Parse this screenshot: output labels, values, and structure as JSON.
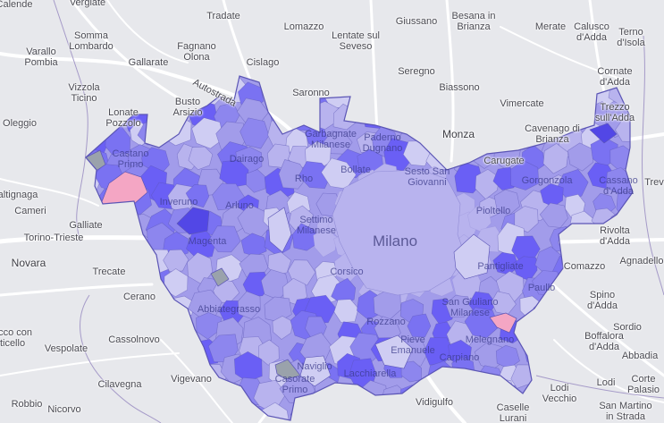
{
  "map": {
    "colors": {
      "background": "#e7e8ec",
      "road": "#ffffff",
      "border": "#a59ac8",
      "cell_outline": "#5b55b5",
      "palette": [
        "#cfcdf3",
        "#b8b3ee",
        "#a29cea",
        "#8d86ee",
        "#7a72f2",
        "#6a5ff5"
      ],
      "dark_cell": "#5247e6",
      "pink": "#f4a6c4",
      "gray": "#9aa2ab"
    },
    "highlight_cells": [
      {
        "name": "pink-cell-castano",
        "color": "#f4a6c4"
      },
      {
        "name": "pink-cell-melegnano",
        "color": "#f4a6c4"
      },
      {
        "name": "gray-cell-castano",
        "color": "#9aa2ab"
      },
      {
        "name": "gray-cell-abbiategrasso",
        "color": "#9aa2ab"
      },
      {
        "name": "gray-cell-casorate",
        "color": "#9aa2ab"
      }
    ],
    "labels": {
      "calende": "Calende",
      "vergiate": "Vergiate",
      "tradate": "Tradate",
      "lomazzo": "Lomazzo",
      "giussano": "Giussano",
      "besana": "Besana in\nBrianza",
      "merate": "Merate",
      "calusco": "Calusco\nd'Adda",
      "terno": "Terno\nd'Isola",
      "somma": "Somma\nLombardo",
      "fagnano": "Fagnano\nOlona",
      "lentate": "Lentate sul\nSeveso",
      "varallo": "Varallo\nPombia",
      "gallarate": "Gallarate",
      "cislago": "Cislago",
      "seregno": "Seregno",
      "cornate": "Cornate\nd'Adda",
      "vizzola": "Vizzola\nTicino",
      "busto": "Busto\nArsizio",
      "saronno": "Saronno",
      "biassono": "Biassono",
      "trezzo": "Trezzo\nsull'Adda",
      "oleggio": "Oleggio",
      "lonate": "Lonate\nPozzolo",
      "vimercate": "Vimercate",
      "monza": "Monza",
      "cavenago": "Cavenago di\nBrianza",
      "castano": "Castano\nPrimo",
      "garbagnate": "Garbagnate\nMilanese",
      "paderno": "Paderno\nDugnano",
      "carugate": "Carugate",
      "dairago": "Dairago",
      "bollate": "Bollate",
      "sesto": "Sesto San\nGiovanni",
      "gorgonzola": "Gorgonzola",
      "cassano": "Cassano\nd'Adda",
      "treviglio": "Trev",
      "galliate_gna": "Galliate...",
      "altignaga": "altignaga",
      "inveruno": "Inveruno",
      "rho": "Rho",
      "arluno": "Arluno",
      "cameri": "Cameri",
      "pioltello": "Pioltello",
      "galliate": "Galliate",
      "magenta": "Magenta",
      "settimo": "Settimo\nMilanese",
      "milano": "Milano",
      "rivolta": "Rivolta\nd'Adda",
      "torino_trieste": "Torino-Trieste",
      "novara": "Novara",
      "paullo": "Paullo",
      "pantigliate": "Pantigliate",
      "comazzo": "Comazzo",
      "agnadello": "Agnadello",
      "trecate": "Trecate",
      "corsico": "Corsico",
      "cerano": "Cerano",
      "spino": "Spino\nd'Adda",
      "abbiategrasso": "Abbiategrasso",
      "san_giuliano": "San Giuliano\nMilanese",
      "rozzano": "Rozzano",
      "sordio": "Sordio",
      "cassolnovo": "Cassolnovo",
      "melegnano": "Melegnano",
      "boffalora": "Boffalora\nd'Adda",
      "ecco_con": "ecco con",
      "ticello": "ticello",
      "vespolate": "Vespolate",
      "pieve": "Pieve\nEmanuele",
      "carpiano": "Carpiano",
      "binasco_naviglio": "Naviglio",
      "abbadia": "Abbadia",
      "vigevano": "Vigevano",
      "lacchiarella": "Lacchiarella",
      "casorate": "Casorate\nPrimo",
      "lodi": "Lodi\nVecchio",
      "lodi2": "Lodi",
      "corte": "Corte\nPalasio",
      "cilavegna": "Cilavegna",
      "robbio": "Robbio",
      "nicorvo": "Nicorvo",
      "vidigulfo": "Vidigulfo",
      "caselle": "Caselle\nLurani",
      "san_martino": "San Martino\nin Strada",
      "autostrada": "Autostrada"
    }
  }
}
